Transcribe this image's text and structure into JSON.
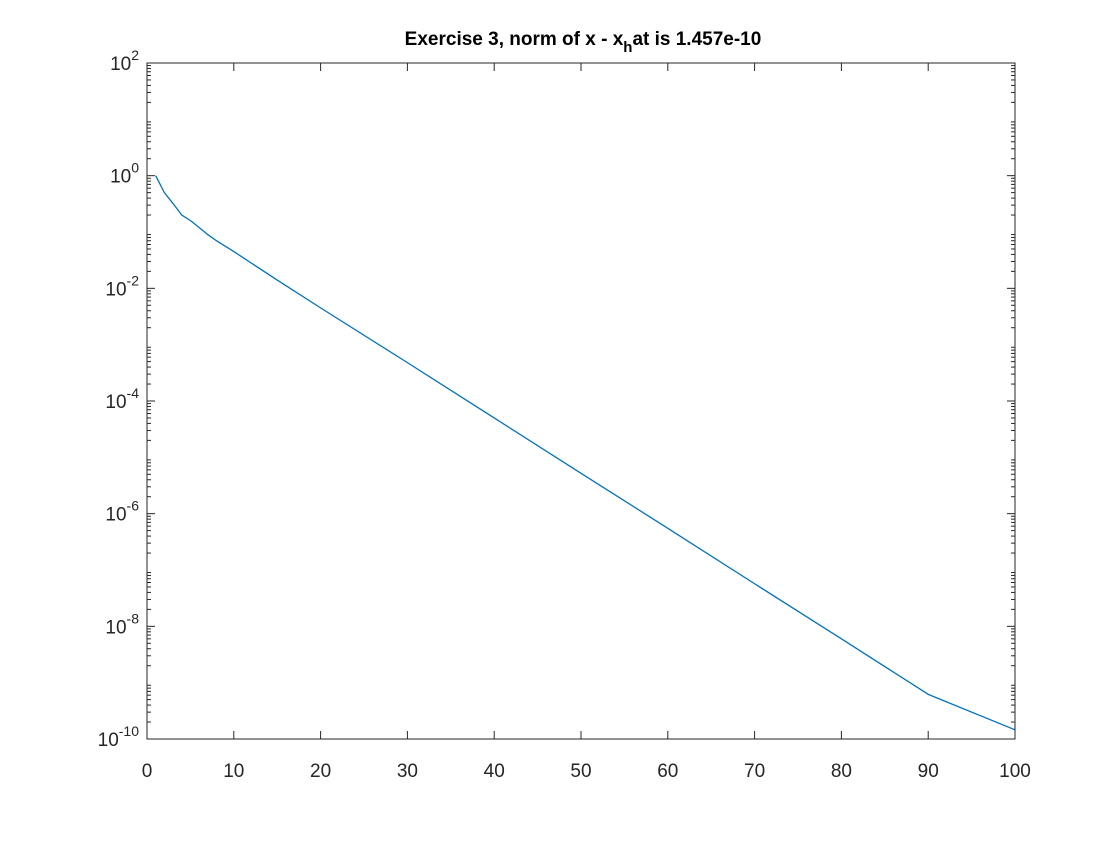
{
  "chart_data": {
    "type": "line",
    "title": {
      "before_subscript": "Exercise 3, norm of x - x",
      "subscript": "h",
      "after_subscript": "at is 1.457e-10"
    },
    "xlabel": "",
    "ylabel": "",
    "xlim": [
      0,
      100
    ],
    "ylim": [
      1e-10,
      100
    ],
    "y_scale": "log",
    "grid": false,
    "legend": "none",
    "x_ticks": [
      {
        "value": 0,
        "label": "0"
      },
      {
        "value": 10,
        "label": "10"
      },
      {
        "value": 20,
        "label": "20"
      },
      {
        "value": 30,
        "label": "30"
      },
      {
        "value": 40,
        "label": "40"
      },
      {
        "value": 50,
        "label": "50"
      },
      {
        "value": 60,
        "label": "60"
      },
      {
        "value": 70,
        "label": "70"
      },
      {
        "value": 80,
        "label": "80"
      },
      {
        "value": 90,
        "label": "90"
      },
      {
        "value": 100,
        "label": "100"
      }
    ],
    "y_ticks": [
      {
        "value": 100,
        "base": "10",
        "exponent": "2"
      },
      {
        "value": 1,
        "base": "10",
        "exponent": "0"
      },
      {
        "value": 0.01,
        "base": "10",
        "exponent": "-2"
      },
      {
        "value": 0.0001,
        "base": "10",
        "exponent": "-4"
      },
      {
        "value": 1e-06,
        "base": "10",
        "exponent": "-6"
      },
      {
        "value": 1e-08,
        "base": "10",
        "exponent": "-8"
      },
      {
        "value": 1e-10,
        "base": "10",
        "exponent": "-10"
      }
    ],
    "series": [
      {
        "color": "#0072BD",
        "x": [
          1,
          2,
          3,
          4,
          5,
          6,
          7,
          8,
          10,
          15,
          20,
          30,
          40,
          50,
          60,
          70,
          80,
          90,
          100
        ],
        "values": [
          1.0,
          0.5,
          0.32,
          0.2,
          0.16,
          0.12,
          0.09,
          0.07,
          0.045,
          0.014,
          0.0045,
          0.00048,
          5e-05,
          5.2e-06,
          5.5e-07,
          5.7e-08,
          6e-09,
          6.2e-10,
          1.457e-10
        ]
      }
    ]
  },
  "colors": {
    "axis": "#262626",
    "background": "#ffffff",
    "line": "#0072BD"
  }
}
